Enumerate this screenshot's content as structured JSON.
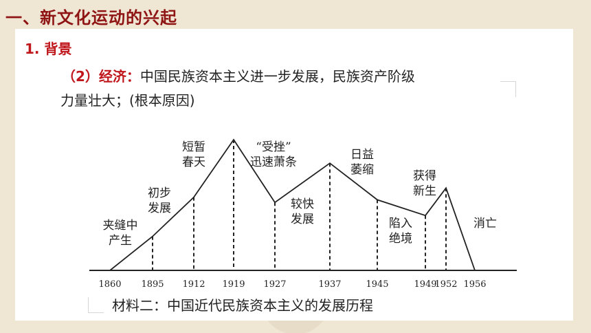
{
  "heading": "一、新文化运动的兴起",
  "subheading": "1. 背景",
  "paragraph": {
    "label": "（2）经济：",
    "line1_rest": "中国民族资本主义进一步发展，民族资产阶级",
    "line2": "力量壮大；(根本原因)"
  },
  "chart_data": {
    "type": "line",
    "title": "",
    "xlabel": "",
    "ylabel": "",
    "x": [
      1860,
      1895,
      1912,
      1919,
      1927,
      1937,
      1945,
      1949,
      1952,
      1956
    ],
    "tick_labels": [
      "1860",
      "1895",
      "1912",
      "1919",
      "1927",
      "1937",
      "1945",
      "1949",
      "1952",
      "1956"
    ],
    "y": [
      0,
      0.26,
      0.56,
      1.0,
      0.52,
      0.82,
      0.54,
      0.42,
      0.63,
      0
    ],
    "phases": [
      {
        "lines": [
          "夹缝中",
          "产生"
        ]
      },
      {
        "lines": [
          "初步",
          "发展"
        ]
      },
      {
        "lines": [
          "短暂",
          "春天"
        ]
      },
      {
        "lines": [
          "“受挫”",
          "迅速萧条"
        ]
      },
      {
        "lines": [
          "较快",
          "发展"
        ]
      },
      {
        "lines": [
          "日益",
          "萎缩"
        ]
      },
      {
        "lines": [
          "陷入",
          "绝境"
        ]
      },
      {
        "lines": [
          "获得",
          "新生"
        ]
      },
      {
        "lines": [
          "消亡"
        ]
      }
    ]
  },
  "caption": "材料二：中国近代民族资本主义的发展历程"
}
